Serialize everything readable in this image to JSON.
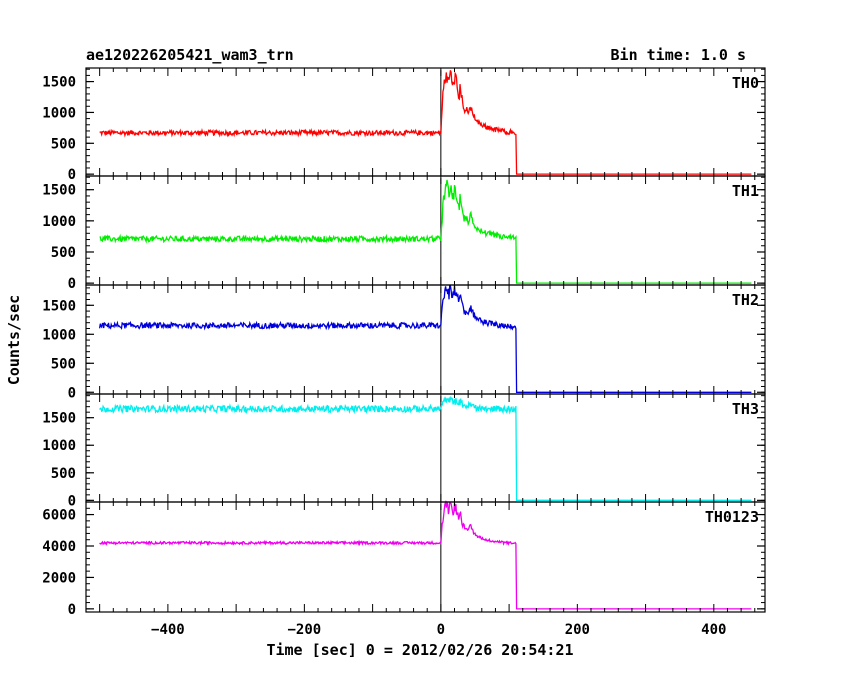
{
  "chart_data": {
    "type": "line",
    "title": "ae120226205421_wam3_trn",
    "subtitle": "Bin time: 1.0 s",
    "xlabel": "Time [sec] 0 = 2012/02/26 20:54:21",
    "ylabel": "Counts/sec",
    "xlim": [
      -520,
      475
    ],
    "x_ticks": [
      -400,
      -200,
      0,
      200,
      400
    ],
    "x_tick_labels": [
      "−400",
      "−200",
      "0",
      "200",
      "400"
    ],
    "marker_x": 0,
    "panels": [
      {
        "name": "TH0",
        "color": "#ff0000",
        "ylim": [
          -30,
          1720
        ],
        "y_ticks": [
          0,
          500,
          1000,
          1500
        ],
        "y_tick_labels": [
          "0",
          "500",
          "1000",
          "1500"
        ],
        "baseline": 670,
        "noise": 40,
        "peak": 1700,
        "post_burst": 650,
        "end_time": 110
      },
      {
        "name": "TH1",
        "color": "#00ee00",
        "ylim": [
          -30,
          1720
        ],
        "y_ticks": [
          0,
          500,
          1000,
          1500
        ],
        "y_tick_labels": [
          "0",
          "500",
          "1000",
          "1500"
        ],
        "baseline": 710,
        "noise": 45,
        "peak": 1600,
        "post_burst": 700,
        "end_time": 110
      },
      {
        "name": "TH2",
        "color": "#0000dd",
        "ylim": [
          -30,
          1850
        ],
        "y_ticks": [
          0,
          500,
          1000,
          1500
        ],
        "y_tick_labels": [
          "0",
          "500",
          "1000",
          "1500"
        ],
        "baseline": 1150,
        "noise": 50,
        "peak": 1850,
        "post_burst": 1120,
        "end_time": 110
      },
      {
        "name": "TH3",
        "color": "#00eeee",
        "ylim": [
          -30,
          1930
        ],
        "y_ticks": [
          0,
          500,
          1000,
          1500
        ],
        "y_tick_labels": [
          "0",
          "500",
          "1000",
          "1500"
        ],
        "baseline": 1660,
        "noise": 60,
        "peak": 1830,
        "post_burst": 1650,
        "end_time": 110
      },
      {
        "name": "TH0123",
        "color": "#ee00ee",
        "ylim": [
          -200,
          6800
        ],
        "y_ticks": [
          0,
          2000,
          4000,
          6000
        ],
        "y_tick_labels": [
          "0",
          "2000",
          "4000",
          "6000"
        ],
        "baseline": 4200,
        "noise": 80,
        "peak": 6800,
        "post_burst": 4100,
        "end_time": 110
      }
    ]
  }
}
